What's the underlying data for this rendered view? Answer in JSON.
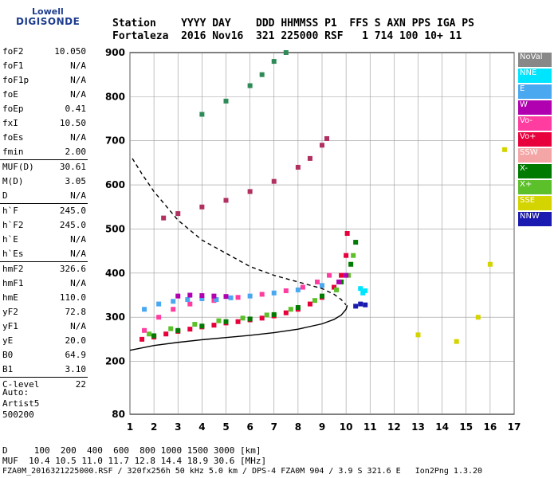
{
  "logo": {
    "line1": "Lowell",
    "line2": "DIGISONDE"
  },
  "header": {
    "line1": "Station    YYYY DAY    DDD HHMMSS P1  FFS S AXN PPS IGA PS",
    "line2": "Fortaleza  2016 Nov16  321 225000 RSF   1 714 100 10+ 11"
  },
  "parameters": [
    {
      "label": "foF2",
      "value": "10.050"
    },
    {
      "label": "foF1",
      "value": "N/A"
    },
    {
      "label": "foF1p",
      "value": "N/A"
    },
    {
      "label": "foE",
      "value": "N/A"
    },
    {
      "label": "foEp",
      "value": "0.41"
    },
    {
      "label": "fxI",
      "value": "10.50"
    },
    {
      "label": "foEs",
      "value": "N/A"
    },
    {
      "label": "fmin",
      "value": "2.00"
    },
    {
      "label": "MUF(D)",
      "value": "30.61"
    },
    {
      "label": "M(D)",
      "value": "3.05"
    },
    {
      "label": "D",
      "value": "N/A"
    },
    {
      "label": "h`F",
      "value": "245.0"
    },
    {
      "label": "h`F2",
      "value": "245.0"
    },
    {
      "label": "h`E",
      "value": "N/A"
    },
    {
      "label": "h`Es",
      "value": "N/A"
    },
    {
      "label": "hmF2",
      "value": "326.6"
    },
    {
      "label": "hmF1",
      "value": "N/A"
    },
    {
      "label": "hmE",
      "value": "110.0"
    },
    {
      "label": "yF2",
      "value": "72.8"
    },
    {
      "label": "yF1",
      "value": "N/A"
    },
    {
      "label": "yE",
      "value": "20.0"
    },
    {
      "label": "B0",
      "value": "64.9"
    },
    {
      "label": "B1",
      "value": "3.10"
    },
    {
      "label": "C-level",
      "value": "22"
    }
  ],
  "auto": [
    "Auto:",
    "Artist5",
    "500200"
  ],
  "legend": [
    {
      "label": "NoVal",
      "color": "#888888"
    },
    {
      "label": "NNE",
      "color": "#00e5ff"
    },
    {
      "label": "E",
      "color": "#4aa8f0"
    },
    {
      "label": "W",
      "color": "#b000b0"
    },
    {
      "label": "Vo-",
      "color": "#ff3ca0"
    },
    {
      "label": "Vo+",
      "color": "#e8003c"
    },
    {
      "label": "SSW",
      "color": "#f4a6a6"
    },
    {
      "label": "X-",
      "color": "#007a00"
    },
    {
      "label": "X+",
      "color": "#5cc02a"
    },
    {
      "label": "SSE",
      "color": "#d4d400"
    },
    {
      "label": "NNW",
      "color": "#1a1ab0"
    }
  ],
  "bottom": {
    "d_line": "D     100  200  400  600  800 1000 1500 3000 [km]",
    "muf_line": "MUF  10.4 10.5 11.0 11.7 12.8 14.4 18.9 30.6 [MHz]"
  },
  "footer": "FZA0M_2016321225000.RSF / 320fx256h 50 kHz 5.0 km / DPS-4 FZA0M 904 / 3.9 S 321.6 E   Ion2Png 1.3.20",
  "chart_data": {
    "type": "scatter",
    "xlabel": "",
    "ylabel": "",
    "xlim": [
      1,
      17
    ],
    "ylim": [
      80,
      900
    ],
    "x_ticks": [
      1,
      2,
      3,
      4,
      5,
      6,
      7,
      8,
      9,
      10,
      11,
      12,
      13,
      14,
      15,
      16,
      17
    ],
    "y_ticks": [
      80,
      200,
      300,
      400,
      500,
      600,
      700,
      800,
      900
    ],
    "grid": true,
    "series": [
      {
        "name": "Vo+",
        "points": [
          [
            1.5,
            250
          ],
          [
            2,
            255
          ],
          [
            2.5,
            262
          ],
          [
            3,
            268
          ],
          [
            3.5,
            273
          ],
          [
            4,
            278
          ],
          [
            4.5,
            282
          ],
          [
            5,
            287
          ],
          [
            5.5,
            290
          ],
          [
            6,
            294
          ],
          [
            6.5,
            298
          ],
          [
            7,
            303
          ],
          [
            7.5,
            310
          ],
          [
            8,
            318
          ],
          [
            8.5,
            330
          ],
          [
            9,
            345
          ],
          [
            9.5,
            368
          ],
          [
            9.8,
            395
          ],
          [
            10,
            440
          ],
          [
            10.05,
            490
          ]
        ]
      },
      {
        "name": "Vo-",
        "points": [
          [
            1.6,
            270
          ],
          [
            2.2,
            300
          ],
          [
            2.8,
            318
          ],
          [
            3.5,
            330
          ],
          [
            4.5,
            338
          ],
          [
            5.5,
            345
          ],
          [
            6.5,
            352
          ],
          [
            7.5,
            360
          ],
          [
            8.2,
            368
          ],
          [
            8.8,
            380
          ],
          [
            9.3,
            395
          ]
        ]
      },
      {
        "name": "X-",
        "points": [
          [
            2,
            258
          ],
          [
            3,
            270
          ],
          [
            4,
            280
          ],
          [
            5,
            290
          ],
          [
            6,
            296
          ],
          [
            7,
            306
          ],
          [
            8,
            322
          ],
          [
            9,
            348
          ],
          [
            9.8,
            380
          ],
          [
            10.2,
            420
          ],
          [
            10.4,
            470
          ]
        ]
      },
      {
        "name": "X+",
        "points": [
          [
            1.8,
            262
          ],
          [
            2.7,
            274
          ],
          [
            3.7,
            284
          ],
          [
            4.7,
            292
          ],
          [
            5.7,
            298
          ],
          [
            6.7,
            305
          ],
          [
            7.7,
            318
          ],
          [
            8.7,
            338
          ],
          [
            9.6,
            362
          ],
          [
            10.1,
            395
          ],
          [
            10.3,
            440
          ]
        ]
      },
      {
        "name": "E",
        "points": [
          [
            1.6,
            318
          ],
          [
            2.2,
            330
          ],
          [
            2.8,
            336
          ],
          [
            3.4,
            340
          ],
          [
            4,
            342
          ],
          [
            4.6,
            340
          ],
          [
            5.2,
            344
          ],
          [
            6,
            348
          ],
          [
            7,
            355
          ],
          [
            8,
            362
          ],
          [
            9,
            372
          ]
        ]
      },
      {
        "name": "W",
        "points": [
          [
            3,
            348
          ],
          [
            3.5,
            350
          ],
          [
            4,
            349
          ],
          [
            4.5,
            348
          ],
          [
            5,
            347
          ],
          [
            9.7,
            380
          ],
          [
            10,
            395
          ]
        ]
      },
      {
        "name": "NNE",
        "points": [
          [
            10.6,
            365
          ],
          [
            10.7,
            355
          ],
          [
            10.8,
            360
          ]
        ]
      },
      {
        "name": "NNW",
        "points": [
          [
            10.4,
            325
          ],
          [
            10.6,
            330
          ],
          [
            10.8,
            328
          ]
        ]
      },
      {
        "name": "SSE",
        "points": [
          [
            13,
            260
          ],
          [
            14.6,
            245
          ],
          [
            15.5,
            300
          ],
          [
            16,
            420
          ],
          [
            16.6,
            680
          ]
        ]
      },
      {
        "name": "second_hop",
        "points": [
          [
            2.4,
            525
          ],
          [
            3,
            535
          ],
          [
            4,
            550
          ],
          [
            5,
            565
          ],
          [
            6,
            585
          ],
          [
            7,
            608
          ],
          [
            8,
            640
          ],
          [
            8.5,
            660
          ],
          [
            9,
            690
          ],
          [
            9.2,
            705
          ]
        ]
      },
      {
        "name": "third_hop",
        "points": [
          [
            4,
            760
          ],
          [
            5,
            790
          ],
          [
            6,
            825
          ],
          [
            6.5,
            850
          ],
          [
            7,
            880
          ],
          [
            7.5,
            900
          ]
        ]
      },
      {
        "name": "profile_solid",
        "points": [
          [
            1,
            225
          ],
          [
            2,
            236
          ],
          [
            3,
            243
          ],
          [
            4,
            249
          ],
          [
            5,
            254
          ],
          [
            6,
            259
          ],
          [
            7,
            265
          ],
          [
            8,
            273
          ],
          [
            9,
            285
          ],
          [
            9.5,
            295
          ],
          [
            9.8,
            305
          ],
          [
            10,
            318
          ],
          [
            10.05,
            327
          ]
        ]
      },
      {
        "name": "profile_dashed",
        "points": [
          [
            1.1,
            660
          ],
          [
            1.5,
            625
          ],
          [
            2,
            585
          ],
          [
            3,
            520
          ],
          [
            4,
            475
          ],
          [
            5,
            445
          ],
          [
            6,
            415
          ],
          [
            7,
            395
          ],
          [
            8,
            380
          ],
          [
            9,
            365
          ],
          [
            9.5,
            352
          ],
          [
            9.8,
            340
          ],
          [
            10,
            328
          ]
        ]
      }
    ]
  }
}
